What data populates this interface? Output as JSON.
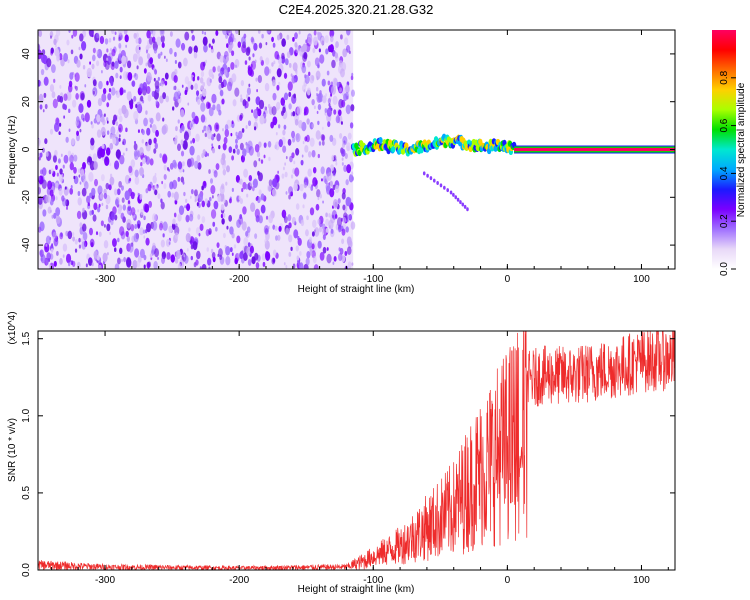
{
  "title": "C2E4.2025.320.21.28.G32",
  "colorbar": {
    "label": "Normalized spectral amplitude",
    "ticks": [
      "0.0",
      "0.2",
      "0.4",
      "0.6",
      "0.8"
    ],
    "tick_values": [
      0.0,
      0.2,
      0.4,
      0.6,
      0.8
    ],
    "range": [
      0,
      1
    ],
    "colormap": [
      "#ffffff",
      "#e8d8f8",
      "#a070ff",
      "#7a00ff",
      "#1a1aff",
      "#00aaff",
      "#00e8d0",
      "#00e000",
      "#aaff00",
      "#ffd000",
      "#ff6a00",
      "#ff0000",
      "#ff0060"
    ]
  },
  "chart_data": [
    {
      "type": "heatmap",
      "name": "spectrogram",
      "xlabel": "Height of straight line (km)",
      "ylabel": "Frequency (Hz)",
      "xlim": [
        -350,
        125
      ],
      "ylim": [
        -50,
        50
      ],
      "xticks": [
        -300,
        -200,
        -100,
        0,
        100
      ],
      "xtick_labels": [
        "-300",
        "-200",
        "-100",
        "0",
        "100"
      ],
      "yticks": [
        -40,
        -20,
        0,
        20,
        40
      ],
      "ytick_labels": [
        "-40",
        "-20",
        "0",
        "20",
        "40"
      ],
      "noise_region_x": [
        -350,
        -115
      ],
      "signal_track": [
        {
          "x": -115,
          "y": 0
        },
        {
          "x": -105,
          "y": 1
        },
        {
          "x": -95,
          "y": 2
        },
        {
          "x": -85,
          "y": 1
        },
        {
          "x": -75,
          "y": 0
        },
        {
          "x": -65,
          "y": 1
        },
        {
          "x": -55,
          "y": 2
        },
        {
          "x": -45,
          "y": 4
        },
        {
          "x": -35,
          "y": 3
        },
        {
          "x": -25,
          "y": 2
        },
        {
          "x": -15,
          "y": 1
        },
        {
          "x": -5,
          "y": 2
        },
        {
          "x": 5,
          "y": 0
        },
        {
          "x": 125,
          "y": 0
        }
      ],
      "side_branch": [
        {
          "x": -62,
          "y": -10
        },
        {
          "x": -42,
          "y": -18
        },
        {
          "x": -28,
          "y": -26
        }
      ],
      "steady_line_x": [
        5,
        125
      ]
    },
    {
      "type": "line",
      "name": "snr",
      "xlabel": "Height of straight line (km)",
      "ylabel": "SNR (10 * v/v)",
      "y_multiplier": "(x10^4)",
      "xlim": [
        -350,
        125
      ],
      "ylim": [
        0,
        1.55
      ],
      "xticks": [
        -300,
        -200,
        -100,
        0,
        100
      ],
      "xtick_labels": [
        "-300",
        "-200",
        "-100",
        "0",
        "100"
      ],
      "yticks": [
        0.0,
        0.5,
        1.0,
        1.5
      ],
      "ytick_labels": [
        "0.0",
        "0.5",
        "1.0",
        "1.5"
      ],
      "color": "#ee2b2b",
      "envelope": [
        {
          "x": -350,
          "y": 0.05
        },
        {
          "x": -300,
          "y": 0.03
        },
        {
          "x": -200,
          "y": 0.02
        },
        {
          "x": -120,
          "y": 0.03
        },
        {
          "x": -100,
          "y": 0.12
        },
        {
          "x": -80,
          "y": 0.22
        },
        {
          "x": -60,
          "y": 0.38
        },
        {
          "x": -40,
          "y": 0.55
        },
        {
          "x": -25,
          "y": 0.8
        },
        {
          "x": -10,
          "y": 1.0
        },
        {
          "x": 0,
          "y": 1.12
        },
        {
          "x": 10,
          "y": 1.25
        },
        {
          "x": 25,
          "y": 1.3
        },
        {
          "x": 50,
          "y": 1.3
        },
        {
          "x": 80,
          "y": 1.35
        },
        {
          "x": 100,
          "y": 1.4
        },
        {
          "x": 125,
          "y": 1.42
        }
      ],
      "dip": {
        "x": 10,
        "y": 0.6
      }
    }
  ]
}
